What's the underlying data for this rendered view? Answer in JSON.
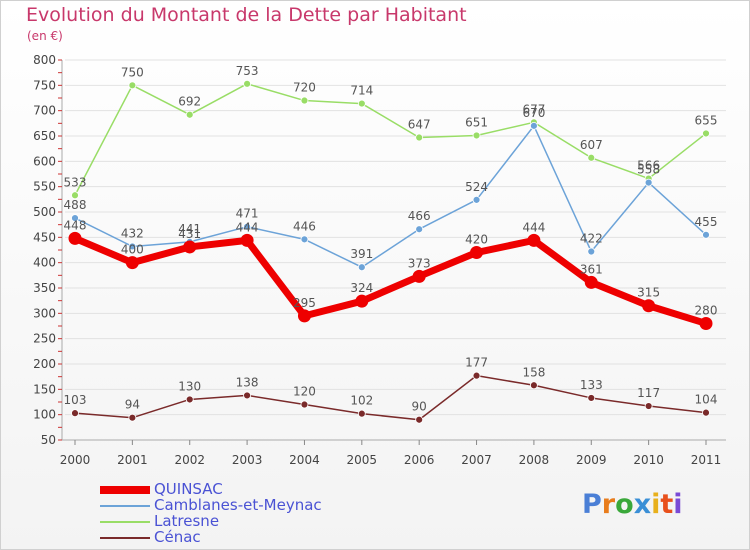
{
  "title": "Evolution du Montant de la Dette par Habitant",
  "subtitle": "(en €)",
  "logo": {
    "text": "Proxiti",
    "letter_colors": [
      "#4a7fd6",
      "#e87c1c",
      "#3aa83a",
      "#3a8fd6",
      "#e8b01c",
      "#e8501c",
      "#7a4ad6"
    ]
  },
  "chart_data": {
    "type": "line",
    "x": [
      "2000",
      "2001",
      "2002",
      "2003",
      "2004",
      "2005",
      "2006",
      "2007",
      "2008",
      "2009",
      "2010",
      "2011"
    ],
    "ylim": [
      50,
      800
    ],
    "yticks": [
      50,
      100,
      150,
      200,
      250,
      300,
      350,
      400,
      450,
      500,
      550,
      600,
      650,
      700,
      750,
      800
    ],
    "grid": true,
    "series": [
      {
        "name": "QUINSAC",
        "color": "#ee0000",
        "width": "thick",
        "values": [
          448,
          400,
          431,
          444,
          295,
          324,
          373,
          420,
          444,
          361,
          315,
          280
        ]
      },
      {
        "name": "Camblanes-et-Meynac",
        "color": "#6ca3d8",
        "width": "thin",
        "values": [
          488,
          432,
          441,
          471,
          446,
          391,
          466,
          524,
          670,
          422,
          558,
          455
        ]
      },
      {
        "name": "Latresne",
        "color": "#99dd66",
        "width": "thin",
        "values": [
          533,
          750,
          692,
          753,
          720,
          714,
          647,
          651,
          677,
          607,
          566,
          655
        ]
      },
      {
        "name": "Cénac",
        "color": "#7a2a2a",
        "width": "thin",
        "values": [
          103,
          94,
          130,
          138,
          120,
          102,
          90,
          177,
          158,
          133,
          117,
          104
        ]
      }
    ]
  }
}
